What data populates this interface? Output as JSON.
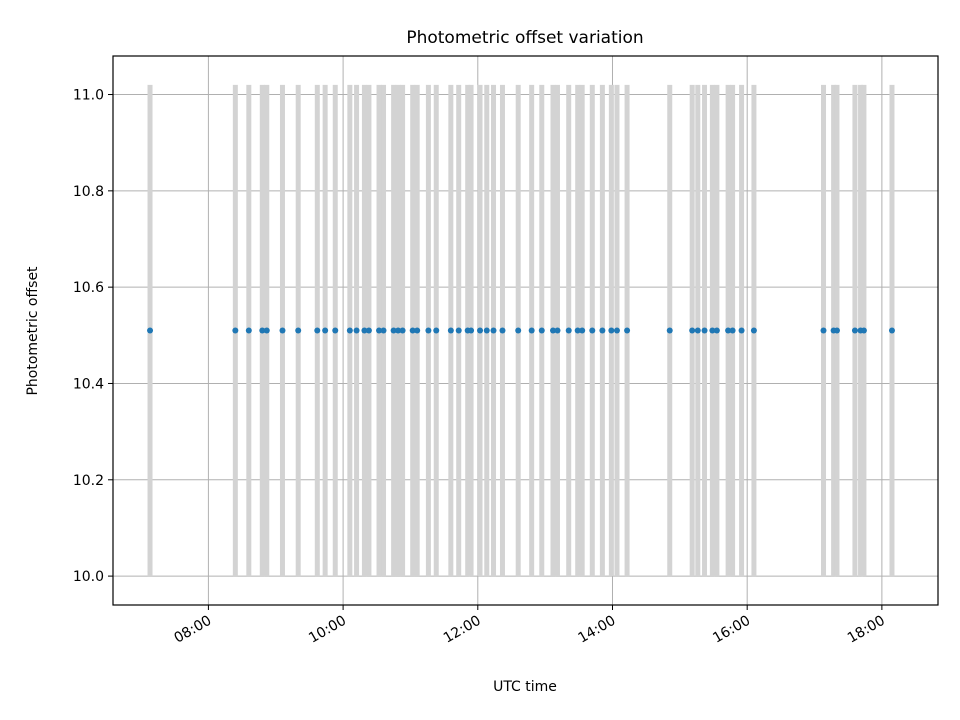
{
  "chart_data": {
    "type": "scatter",
    "title": "Photometric offset variation",
    "xlabel": "UTC time",
    "ylabel": "Photometric offset",
    "xlim": [
      "06:35",
      "18:50"
    ],
    "ylim": [
      9.94,
      11.08
    ],
    "x_ticks": [
      "08:00",
      "10:00",
      "12:00",
      "14:00",
      "16:00",
      "18:00"
    ],
    "y_ticks": [
      "10.0",
      "10.2",
      "10.4",
      "10.6",
      "10.8",
      "11.0"
    ],
    "grid": true,
    "marker_color": "#1f77b4",
    "errorbar_color": "#d3d3d3",
    "errorbar_range": [
      10.0,
      11.02
    ],
    "y_value": 10.51,
    "x": [
      "07:08",
      "08:24",
      "08:36",
      "08:48",
      "08:52",
      "09:06",
      "09:20",
      "09:37",
      "09:44",
      "09:53",
      "10:06",
      "10:12",
      "10:19",
      "10:23",
      "10:32",
      "10:36",
      "10:45",
      "10:49",
      "10:53",
      "11:02",
      "11:06",
      "11:16",
      "11:23",
      "11:36",
      "11:43",
      "11:51",
      "11:54",
      "12:02",
      "12:08",
      "12:14",
      "12:22",
      "12:36",
      "12:48",
      "12:57",
      "13:07",
      "13:11",
      "13:21",
      "13:29",
      "13:33",
      "13:42",
      "13:51",
      "13:59",
      "14:04",
      "14:13",
      "14:51",
      "15:11",
      "15:16",
      "15:22",
      "15:29",
      "15:33",
      "15:43",
      "15:47",
      "15:55",
      "16:06",
      "17:08",
      "17:17",
      "17:20",
      "17:36",
      "17:41",
      "17:44",
      "18:09"
    ]
  }
}
